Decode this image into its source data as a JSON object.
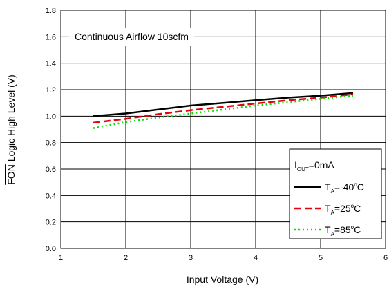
{
  "chart_data": {
    "type": "line",
    "xlabel": "Input Voltage (V)",
    "ylabel": "FON Logic High Level (V)",
    "ylabel_overline": "FON",
    "ylabel_rest": " Logic High Level (V)",
    "annotation": "Continuous Airflow 10scfm",
    "xlim": [
      1,
      6
    ],
    "ylim": [
      0,
      1.8
    ],
    "x_ticks": [
      1,
      2,
      3,
      4,
      5,
      6
    ],
    "x_tick_labels": [
      "1",
      "2",
      "3",
      "4",
      "5",
      "6"
    ],
    "y_ticks": [
      0,
      0.2,
      0.4,
      0.6,
      0.8,
      1.0,
      1.2,
      1.4,
      1.6,
      1.8
    ],
    "y_tick_labels": [
      "0.0",
      "0.2",
      "0.4",
      "0.6",
      "0.8",
      "1.0",
      "1.2",
      "1.4",
      "1.6",
      "1.8"
    ],
    "grid": true,
    "legend": {
      "placement": "bottom-right",
      "header": {
        "main": "I",
        "sub": "OUT",
        "rest": "=0mA"
      },
      "entries": [
        {
          "main": "T",
          "sub": "A",
          "value": "=-40",
          "sup": "o",
          "unit": "C"
        },
        {
          "main": "T",
          "sub": "A",
          "value": "=25",
          "sup": "o",
          "unit": "C"
        },
        {
          "main": "T",
          "sub": "A",
          "value": "=85",
          "sup": "o",
          "unit": "C"
        }
      ]
    },
    "series": [
      {
        "name": "TA=-40°C",
        "color": "#000000",
        "dash": "solid",
        "x": [
          1.5,
          2.0,
          2.5,
          3.0,
          3.5,
          4.0,
          4.5,
          5.0,
          5.5
        ],
        "y": [
          1.0,
          1.02,
          1.05,
          1.08,
          1.1,
          1.12,
          1.14,
          1.155,
          1.175
        ]
      },
      {
        "name": "TA=25°C",
        "color": "#e8000b",
        "dash": "dashed",
        "x": [
          1.5,
          2.0,
          2.5,
          3.0,
          3.5,
          4.0,
          4.5,
          5.0,
          5.5
        ],
        "y": [
          0.95,
          0.98,
          1.015,
          1.045,
          1.07,
          1.095,
          1.12,
          1.14,
          1.165
        ]
      },
      {
        "name": "TA=85°C",
        "color": "#00e000",
        "dash": "dotted",
        "x": [
          1.5,
          2.0,
          2.5,
          3.0,
          3.5,
          4.0,
          4.5,
          5.0,
          5.5
        ],
        "y": [
          0.91,
          0.955,
          0.99,
          1.02,
          1.05,
          1.08,
          1.105,
          1.13,
          1.155
        ]
      }
    ]
  }
}
